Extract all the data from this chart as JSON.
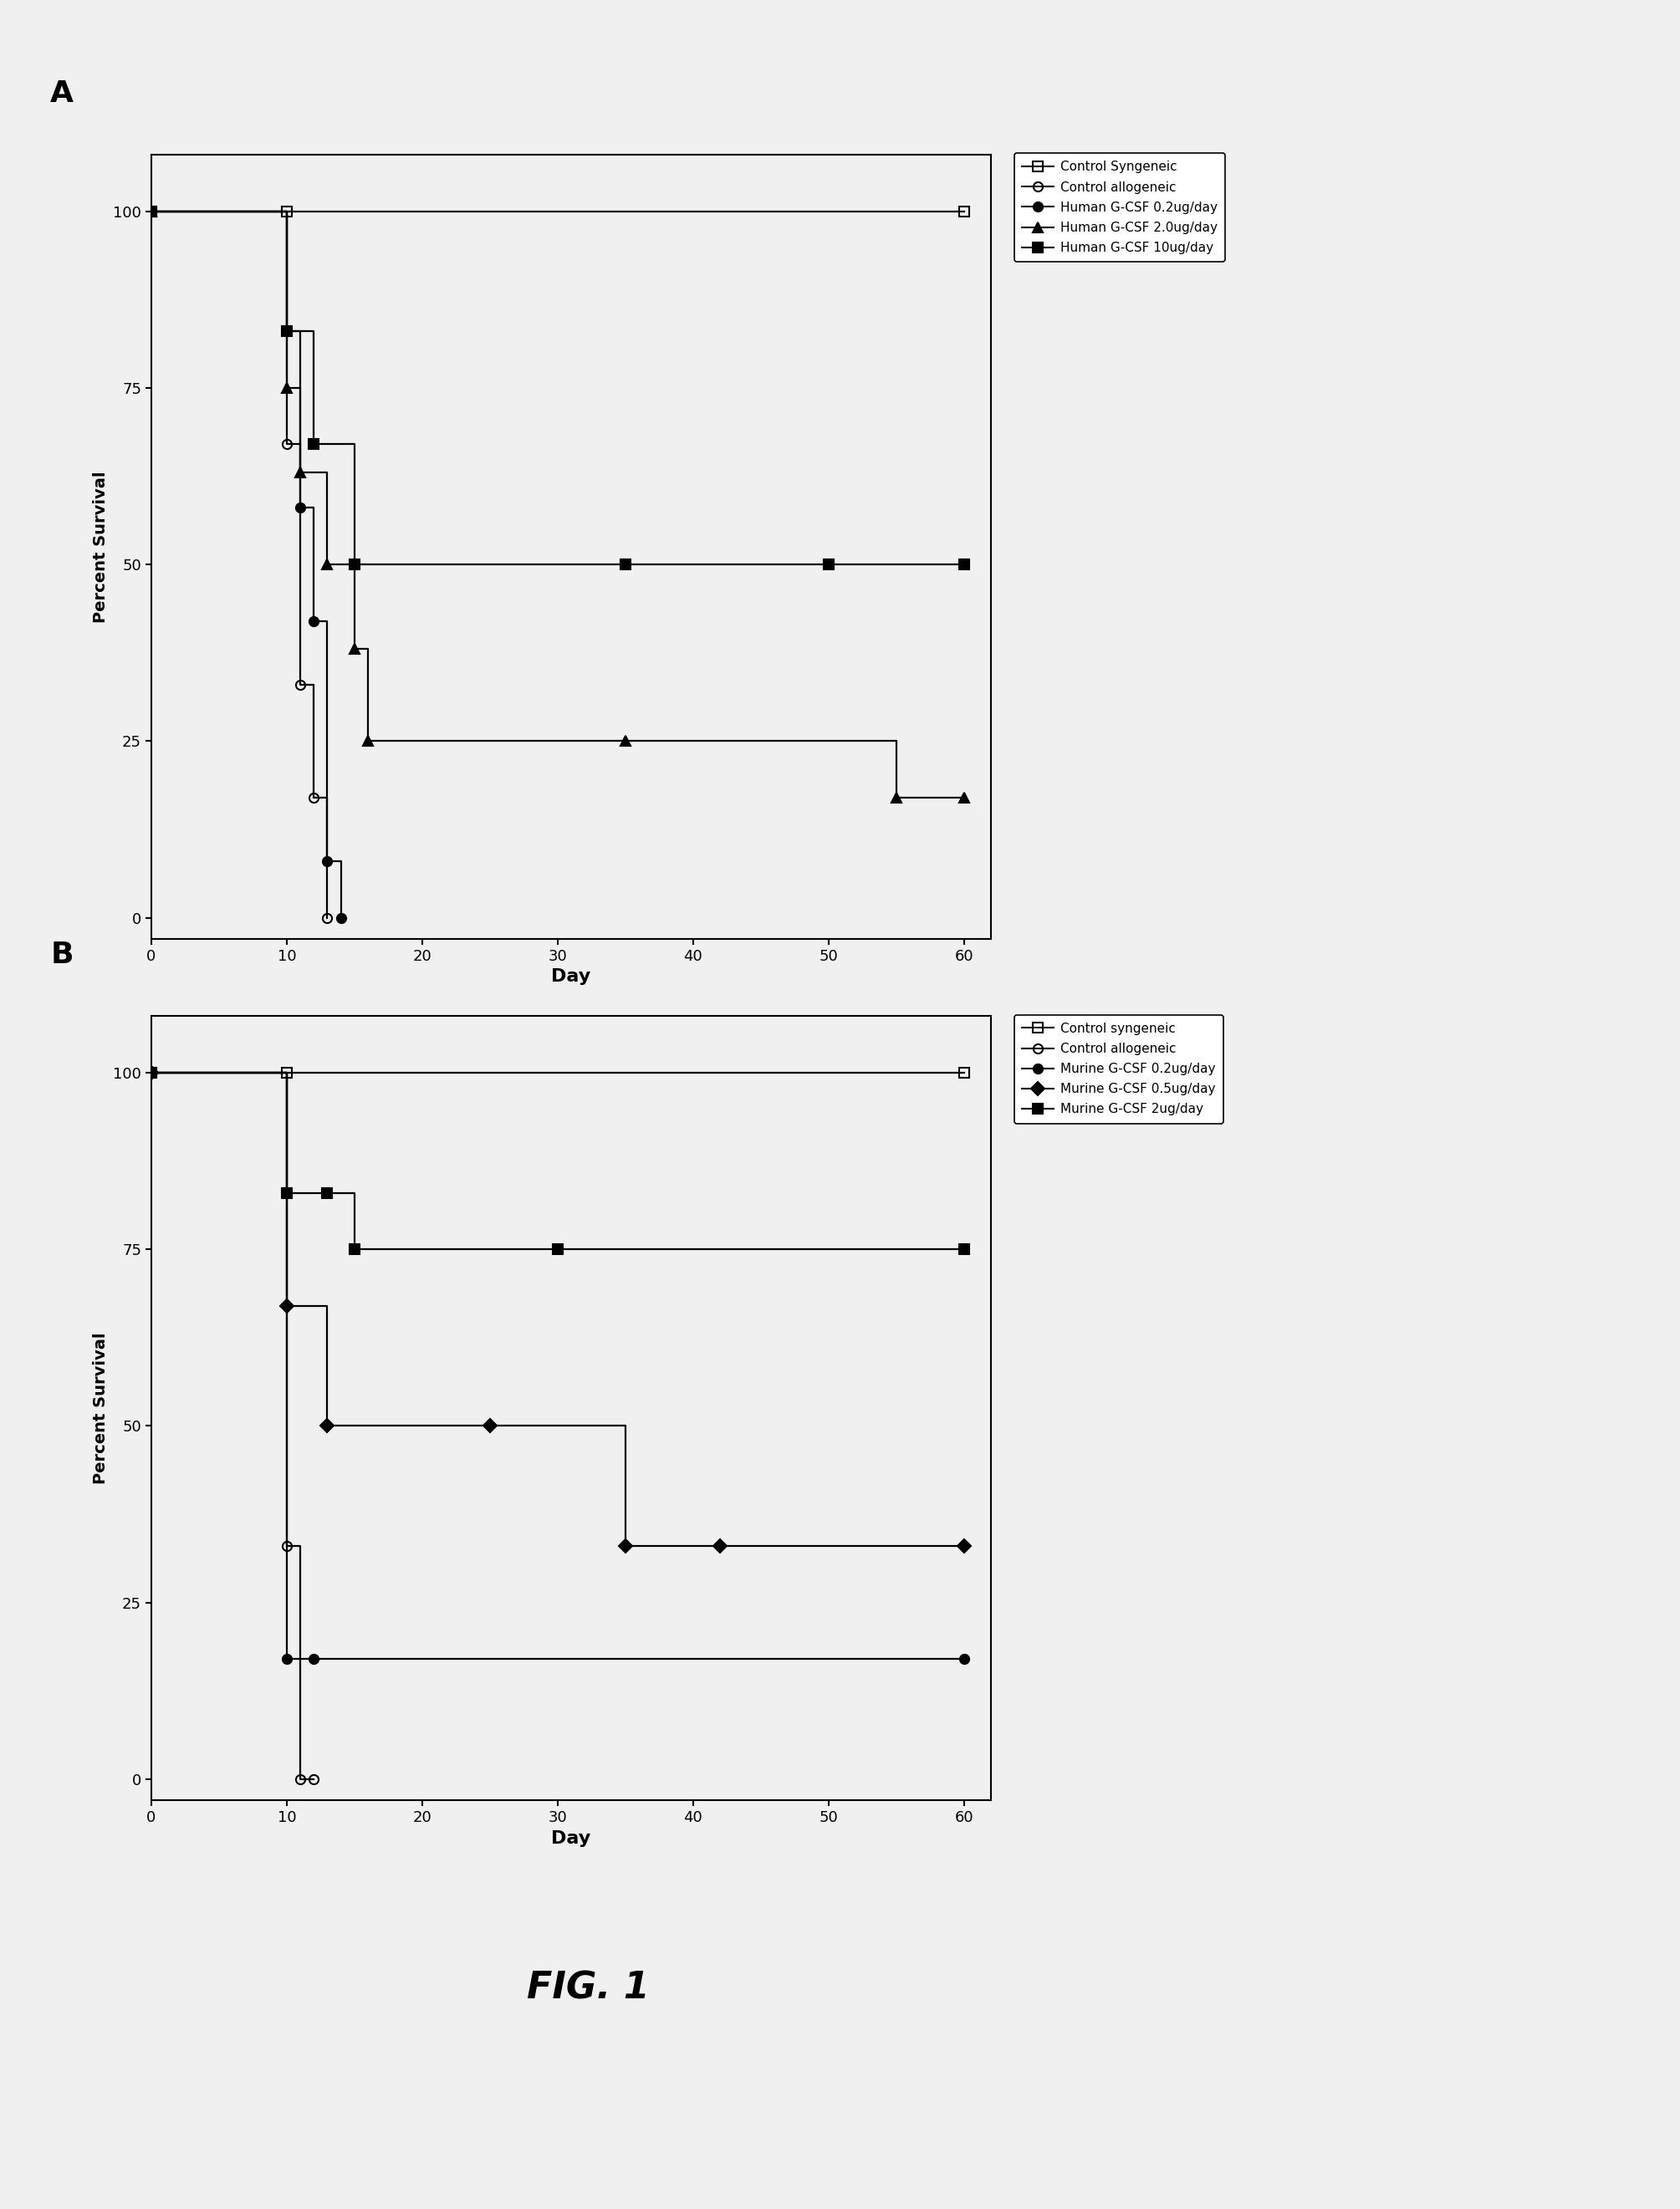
{
  "panel_A": {
    "title": "A",
    "series": [
      {
        "label": "Control Syngeneic",
        "marker": "s",
        "fillstyle": "none",
        "color": "black",
        "x": [
          0,
          10,
          60
        ],
        "y": [
          100,
          100,
          100
        ]
      },
      {
        "label": "Control allogeneic",
        "marker": "o",
        "fillstyle": "none",
        "color": "black",
        "x": [
          0,
          10,
          11,
          12,
          13
        ],
        "y": [
          100,
          67,
          33,
          17,
          0
        ]
      },
      {
        "label": "Human G-CSF 0.2ug/day",
        "marker": "o",
        "fillstyle": "full",
        "color": "black",
        "x": [
          0,
          10,
          11,
          12,
          13,
          14
        ],
        "y": [
          100,
          83,
          58,
          42,
          8,
          0
        ]
      },
      {
        "label": "Human G-CSF 2.0ug/day",
        "marker": "^",
        "fillstyle": "full",
        "color": "black",
        "x": [
          0,
          10,
          11,
          13,
          15,
          16,
          35,
          55,
          60
        ],
        "y": [
          100,
          75,
          63,
          50,
          38,
          25,
          25,
          17,
          17
        ]
      },
      {
        "label": "Human G-CSF 10ug/day",
        "marker": "s",
        "fillstyle": "full",
        "color": "black",
        "x": [
          0,
          10,
          12,
          15,
          35,
          50,
          60
        ],
        "y": [
          100,
          83,
          67,
          50,
          50,
          50,
          50
        ]
      }
    ],
    "xlabel": "Day",
    "ylabel": "Percent Survival",
    "xlim": [
      0,
      62
    ],
    "ylim": [
      -3,
      108
    ],
    "xticks": [
      0,
      10,
      20,
      30,
      40,
      50,
      60
    ],
    "yticks": [
      0,
      25,
      50,
      75,
      100
    ]
  },
  "panel_B": {
    "title": "B",
    "series": [
      {
        "label": "Control syngeneic",
        "marker": "s",
        "fillstyle": "none",
        "color": "black",
        "x": [
          0,
          10,
          60
        ],
        "y": [
          100,
          100,
          100
        ]
      },
      {
        "label": "Control allogeneic",
        "marker": "o",
        "fillstyle": "none",
        "color": "black",
        "x": [
          0,
          10,
          11,
          12
        ],
        "y": [
          100,
          33,
          0,
          0
        ]
      },
      {
        "label": "Murine G-CSF 0.2ug/day",
        "marker": "o",
        "fillstyle": "full",
        "color": "black",
        "x": [
          0,
          10,
          12,
          60
        ],
        "y": [
          100,
          17,
          17,
          17
        ]
      },
      {
        "label": "Murine G-CSF 0.5ug/day",
        "marker": "D",
        "fillstyle": "full",
        "color": "black",
        "x": [
          0,
          10,
          13,
          25,
          35,
          42,
          60
        ],
        "y": [
          100,
          67,
          50,
          50,
          33,
          33,
          33
        ]
      },
      {
        "label": "Murine G-CSF 2ug/day",
        "marker": "s",
        "fillstyle": "full",
        "color": "black",
        "x": [
          0,
          10,
          13,
          15,
          30,
          60
        ],
        "y": [
          100,
          83,
          83,
          75,
          75,
          75
        ]
      }
    ],
    "xlabel": "Day",
    "ylabel": "Percent Survival",
    "xlim": [
      0,
      62
    ],
    "ylim": [
      -3,
      108
    ],
    "xticks": [
      0,
      10,
      20,
      30,
      40,
      50,
      60
    ],
    "yticks": [
      0,
      25,
      50,
      75,
      100
    ]
  },
  "fig_label": "FIG. 1",
  "background_color": "#f0f0f0",
  "font_size_axis_label": 16,
  "font_size_tick": 13,
  "font_size_legend": 11,
  "font_size_panel": 26,
  "font_size_fig": 32,
  "marker_size": 8,
  "linewidth": 1.6
}
